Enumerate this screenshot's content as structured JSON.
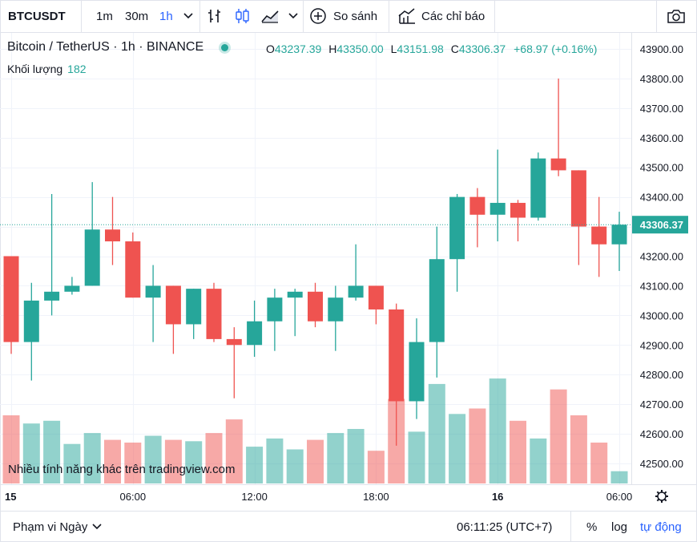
{
  "toolbar": {
    "symbol": "BTCUSDT",
    "timeframes": [
      "1m",
      "30m",
      "1h"
    ],
    "active_timeframe": "1h",
    "compare_label": "So sánh",
    "indicators_label": "Các chỉ báo"
  },
  "legend": {
    "title": "Bitcoin / TetherUS · 1h · BINANCE",
    "open_label": "O",
    "open": "43237.39",
    "high_label": "H",
    "high": "43350.00",
    "low_label": "L",
    "low": "43151.98",
    "close_label": "C",
    "close": "43306.37",
    "change": "+68.97 (+0.16%)",
    "volume_label": "Khối lượng",
    "volume": "182"
  },
  "watermark": "Nhiều tính năng khác trên tradingview.com",
  "bottom": {
    "range_label": "Phạm vi Ngày",
    "time": "06:11:25 (UTC+7)",
    "percent": "%",
    "log": "log",
    "auto": "tự động"
  },
  "colors": {
    "up": "#26a69a",
    "down": "#ef5350",
    "accent": "#2962ff",
    "grid": "#f0f3fa"
  },
  "chart_data": {
    "type": "candlestick",
    "symbol": "BTCUSDT",
    "price_ticks": [
      "43900.00",
      "43800.00",
      "43700.00",
      "43600.00",
      "43500.00",
      "43400.00",
      "43300.00",
      "43200.00",
      "43100.00",
      "43000.00",
      "42900.00",
      "42800.00",
      "42700.00",
      "42600.00",
      "42500.00"
    ],
    "ylim": [
      42430,
      43950
    ],
    "last_price": "43306.37",
    "time_labels": [
      {
        "label": "15",
        "bar": 0,
        "bold": true
      },
      {
        "label": "06:00",
        "bar": 6
      },
      {
        "label": "12:00",
        "bar": 12
      },
      {
        "label": "18:00",
        "bar": 18
      },
      {
        "label": "16",
        "bar": 24,
        "bold": true
      },
      {
        "label": "06:00",
        "bar": 30
      }
    ],
    "candles": [
      {
        "o": 43200,
        "h": 43200,
        "l": 42870,
        "c": 42910
      },
      {
        "o": 42910,
        "h": 43110,
        "l": 42780,
        "c": 43050
      },
      {
        "o": 43050,
        "h": 43410,
        "l": 43000,
        "c": 43080
      },
      {
        "o": 43080,
        "h": 43130,
        "l": 43070,
        "c": 43100
      },
      {
        "o": 43100,
        "h": 43450,
        "l": 43100,
        "c": 43290
      },
      {
        "o": 43290,
        "h": 43400,
        "l": 43170,
        "c": 43250
      },
      {
        "o": 43250,
        "h": 43280,
        "l": 43060,
        "c": 43060
      },
      {
        "o": 43060,
        "h": 43170,
        "l": 42910,
        "c": 43100
      },
      {
        "o": 43100,
        "h": 43100,
        "l": 42870,
        "c": 42970
      },
      {
        "o": 42970,
        "h": 43090,
        "l": 42920,
        "c": 43090
      },
      {
        "o": 43090,
        "h": 43110,
        "l": 42910,
        "c": 42920
      },
      {
        "o": 42920,
        "h": 42960,
        "l": 42720,
        "c": 42900
      },
      {
        "o": 42900,
        "h": 43050,
        "l": 42860,
        "c": 42980
      },
      {
        "o": 42980,
        "h": 43090,
        "l": 42880,
        "c": 43060
      },
      {
        "o": 43060,
        "h": 43090,
        "l": 42930,
        "c": 43080
      },
      {
        "o": 43080,
        "h": 43110,
        "l": 42960,
        "c": 42980
      },
      {
        "o": 42980,
        "h": 43100,
        "l": 42880,
        "c": 43060
      },
      {
        "o": 43060,
        "h": 43240,
        "l": 43050,
        "c": 43100
      },
      {
        "o": 43100,
        "h": 43100,
        "l": 42970,
        "c": 43020
      },
      {
        "o": 43020,
        "h": 43040,
        "l": 42560,
        "c": 42710
      },
      {
        "o": 42710,
        "h": 42990,
        "l": 42650,
        "c": 42910
      },
      {
        "o": 42910,
        "h": 43300,
        "l": 42790,
        "c": 43190
      },
      {
        "o": 43190,
        "h": 43410,
        "l": 43080,
        "c": 43400
      },
      {
        "o": 43400,
        "h": 43430,
        "l": 43230,
        "c": 43340
      },
      {
        "o": 43340,
        "h": 43560,
        "l": 43250,
        "c": 43380
      },
      {
        "o": 43380,
        "h": 43390,
        "l": 43250,
        "c": 43330
      },
      {
        "o": 43330,
        "h": 43550,
        "l": 43320,
        "c": 43530
      },
      {
        "o": 43530,
        "h": 43800,
        "l": 43470,
        "c": 43490
      },
      {
        "o": 43490,
        "h": 43490,
        "l": 43170,
        "c": 43300
      },
      {
        "o": 43300,
        "h": 43400,
        "l": 43130,
        "c": 43240
      },
      {
        "o": 43240,
        "h": 43350,
        "l": 43150,
        "c": 43306.37
      }
    ],
    "volume_relative": [
      0.5,
      0.44,
      0.46,
      0.29,
      0.37,
      0.32,
      0.3,
      0.35,
      0.32,
      0.31,
      0.37,
      0.47,
      0.27,
      0.33,
      0.25,
      0.32,
      0.37,
      0.4,
      0.24,
      0.62,
      0.38,
      0.73,
      0.51,
      0.55,
      0.77,
      0.46,
      0.33,
      0.69,
      0.5,
      0.3,
      0.09
    ],
    "grid": true
  }
}
